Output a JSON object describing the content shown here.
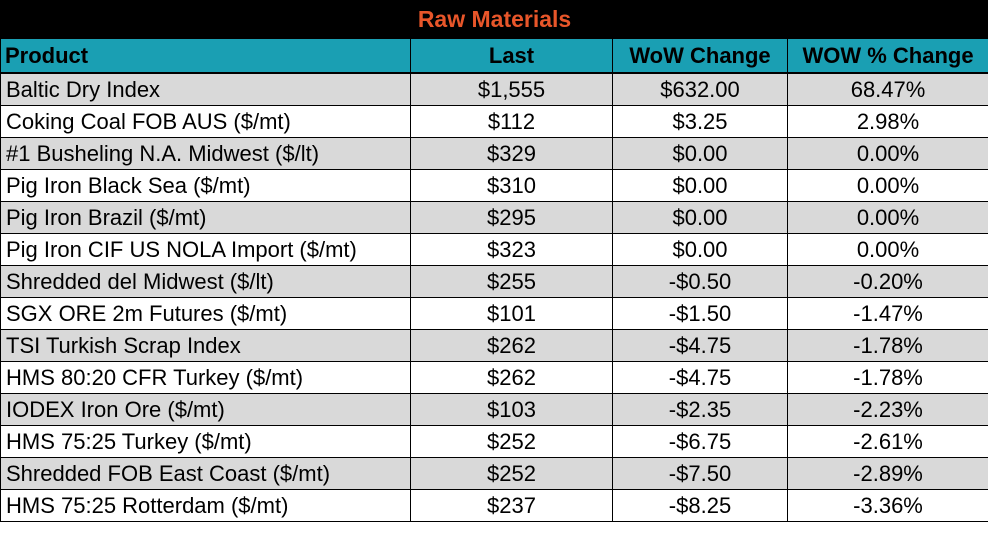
{
  "title": "Raw Materials",
  "headers": [
    "Product",
    "Last",
    "WoW Change",
    "WOW % Change"
  ],
  "rows": [
    {
      "product": "Baltic Dry Index",
      "last": "$1,555",
      "wow": "$632.00",
      "pct": "68.47%"
    },
    {
      "product": "Coking Coal FOB AUS ($/mt)",
      "last": "$112",
      "wow": "$3.25",
      "pct": "2.98%"
    },
    {
      "product": "#1 Busheling N.A. Midwest ($/lt)",
      "last": "$329",
      "wow": "$0.00",
      "pct": "0.00%"
    },
    {
      "product": "Pig Iron Black Sea ($/mt)",
      "last": "$310",
      "wow": "$0.00",
      "pct": "0.00%"
    },
    {
      "product": "Pig Iron Brazil ($/mt)",
      "last": "$295",
      "wow": "$0.00",
      "pct": "0.00%"
    },
    {
      "product": "Pig Iron CIF US NOLA Import ($/mt)",
      "last": "$323",
      "wow": "$0.00",
      "pct": "0.00%"
    },
    {
      "product": "Shredded del  Midwest ($/lt)",
      "last": "$255",
      "wow": "-$0.50",
      "pct": "-0.20%"
    },
    {
      "product": "SGX ORE 2m Futures ($/mt)",
      "last": "$101",
      "wow": "-$1.50",
      "pct": "-1.47%"
    },
    {
      "product": "TSI Turkish Scrap Index",
      "last": "$262",
      "wow": "-$4.75",
      "pct": "-1.78%"
    },
    {
      "product": "HMS 80:20 CFR Turkey ($/mt)",
      "last": "$262",
      "wow": "-$4.75",
      "pct": "-1.78%"
    },
    {
      "product": "IODEX  Iron Ore ($/mt)",
      "last": "$103",
      "wow": "-$2.35",
      "pct": "-2.23%"
    },
    {
      "product": "HMS 75:25 Turkey ($/mt)",
      "last": "$252",
      "wow": "-$6.75",
      "pct": "-2.61%"
    },
    {
      "product": "Shredded FOB East Coast ($/mt)",
      "last": "$252",
      "wow": "-$7.50",
      "pct": "-2.89%"
    },
    {
      "product": "HMS 75:25 Rotterdam ($/mt)",
      "last": "$237",
      "wow": "-$8.25",
      "pct": "-3.36%"
    }
  ],
  "colors": {
    "title_bg": "#000000",
    "title_text": "#e8562a",
    "header_bg": "#1a9fb3",
    "row_alt_bg": "#d9d9d9"
  }
}
